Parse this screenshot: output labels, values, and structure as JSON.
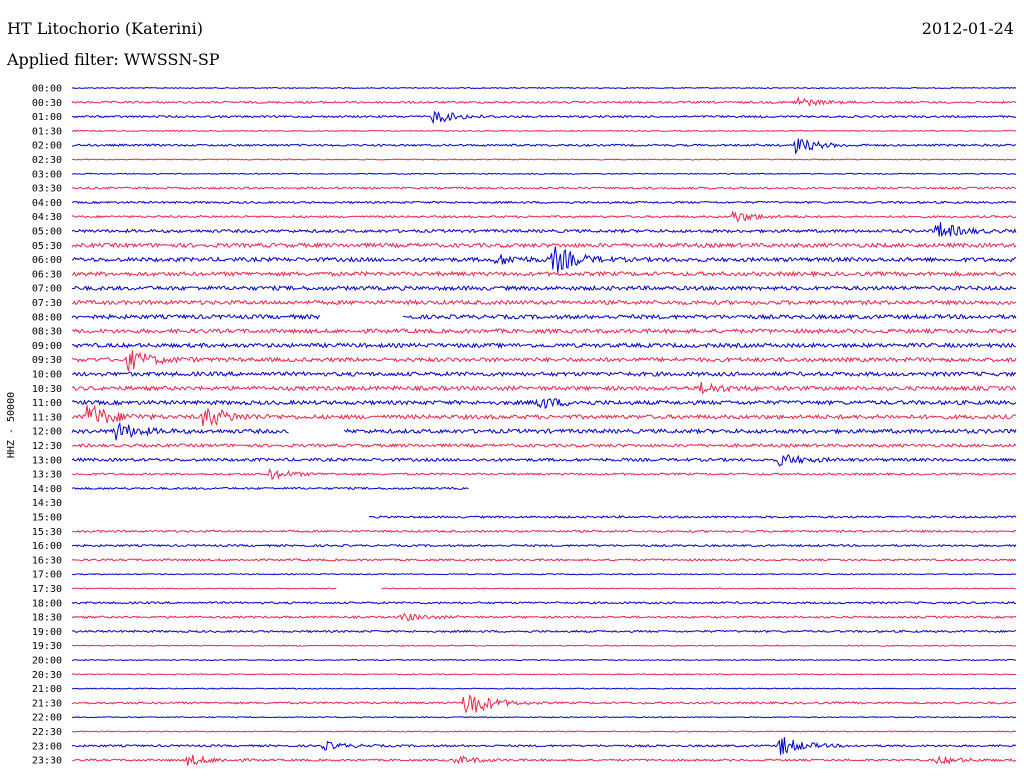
{
  "header": {
    "station": "HT Litochorio (Katerini)",
    "date": "2012-01-24",
    "filter": "Applied filter: WWSSN-SP"
  },
  "chart_data": {
    "type": "line",
    "title": "HT Litochorio (Katerini)",
    "ylabel": "HHZ - 50000",
    "row_labels": [
      "00:00",
      "00:30",
      "01:00",
      "01:30",
      "02:00",
      "02:30",
      "03:00",
      "03:30",
      "04:00",
      "04:30",
      "05:00",
      "05:30",
      "06:00",
      "06:30",
      "07:00",
      "07:30",
      "08:00",
      "08:30",
      "09:00",
      "09:30",
      "10:00",
      "10:30",
      "11:00",
      "11:30",
      "12:00",
      "12:30",
      "13:00",
      "13:30",
      "14:00",
      "14:30",
      "15:00",
      "15:30",
      "16:00",
      "16:30",
      "17:00",
      "17:30",
      "18:00",
      "18:30",
      "19:00",
      "19:30",
      "20:00",
      "20:30",
      "21:00",
      "21:30",
      "22:00",
      "22:30",
      "23:00",
      "23:30"
    ],
    "colors": [
      "#0000cc",
      "#e8254a"
    ],
    "noise_level": [
      0.5,
      1,
      1,
      0.5,
      1,
      0.5,
      0.5,
      1,
      1,
      1,
      1.5,
      2,
      2,
      2,
      2,
      2,
      2,
      2,
      2,
      2,
      2,
      2,
      2,
      2,
      2,
      1.5,
      1.5,
      1,
      1,
      0,
      1,
      1,
      1,
      1,
      0.5,
      0.5,
      1,
      1,
      1,
      0.5,
      0.5,
      0.5,
      0.5,
      1,
      0.5,
      0.5,
      1,
      1
    ],
    "events": [
      {
        "row": 2,
        "minute": 11.5,
        "amp": 7
      },
      {
        "row": 1,
        "minute": 23.0,
        "amp": 5
      },
      {
        "row": 4,
        "minute": 23.0,
        "amp": 8
      },
      {
        "row": 9,
        "minute": 21.0,
        "amp": 6
      },
      {
        "row": 10,
        "minute": 27.5,
        "amp": 9
      },
      {
        "row": 12,
        "minute": 15.3,
        "amp": 14
      },
      {
        "row": 12,
        "minute": 13.5,
        "amp": 5
      },
      {
        "row": 19,
        "minute": 1.8,
        "amp": 10
      },
      {
        "row": 21,
        "minute": 20.0,
        "amp": 5
      },
      {
        "row": 22,
        "minute": 14.8,
        "amp": 6
      },
      {
        "row": 23,
        "minute": 0.5,
        "amp": 14
      },
      {
        "row": 23,
        "minute": 4.2,
        "amp": 12
      },
      {
        "row": 24,
        "minute": 1.4,
        "amp": 9
      },
      {
        "row": 26,
        "minute": 22.5,
        "amp": 6
      },
      {
        "row": 27,
        "minute": 6.3,
        "amp": 5
      },
      {
        "row": 37,
        "minute": 10.5,
        "amp": 4
      },
      {
        "row": 43,
        "minute": 12.5,
        "amp": 16
      },
      {
        "row": 46,
        "minute": 22.5,
        "amp": 10
      },
      {
        "row": 46,
        "minute": 8.0,
        "amp": 4
      },
      {
        "row": 47,
        "minute": 3.7,
        "amp": 6
      },
      {
        "row": 47,
        "minute": 12.2,
        "amp": 4
      },
      {
        "row": 47,
        "minute": 27.5,
        "amp": 4
      }
    ],
    "gaps": [
      {
        "row": 16,
        "from": 7.9,
        "to": 10.5
      },
      {
        "row": 24,
        "from": 6.9,
        "to": 8.6
      },
      {
        "row": 28,
        "from": 12.6,
        "to": 30
      },
      {
        "row": 29,
        "from": 0,
        "to": 30
      },
      {
        "row": 30,
        "from": 0,
        "to": 9.4
      },
      {
        "row": 35,
        "from": 8.4,
        "to": 9.8
      }
    ],
    "xlim": [
      0,
      30
    ],
    "grid": false
  }
}
